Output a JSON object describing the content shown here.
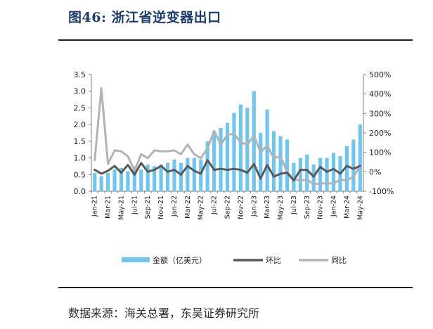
{
  "header": {
    "title": "图46:  浙江省逆变器出口"
  },
  "footer": {
    "source": "数据来源：海关总署，东吴证券研究所"
  },
  "colors": {
    "bar": "#6ec6f1",
    "mom": "#595959",
    "yoy": "#b3b3b3",
    "title": "#1b3c6e"
  },
  "chart_data": {
    "type": "bar",
    "categories": [
      "Jan-21",
      "Feb-21",
      "Mar-21",
      "Apr-21",
      "May-21",
      "Jun-21",
      "Jul-21",
      "Aug-21",
      "Sep-21",
      "Oct-21",
      "Nov-21",
      "Dec-21",
      "Jan-22",
      "Feb-22",
      "Mar-22",
      "Apr-22",
      "May-22",
      "Jun-22",
      "Jul-22",
      "Aug-22",
      "Sep-22",
      "Oct-22",
      "Nov-22",
      "Dec-22",
      "Jan-23",
      "Feb-23",
      "Mar-23",
      "Apr-23",
      "May-23",
      "Jun-23",
      "Jul-23",
      "Aug-23",
      "Sep-23",
      "Oct-23",
      "Nov-23",
      "Dec-23",
      "Jan-24",
      "Feb-24",
      "Mar-24",
      "Apr-24",
      "May-24"
    ],
    "x_tick_labels": [
      "Jan-21",
      "Mar-21",
      "May-21",
      "Jul-21",
      "Sep-21",
      "Nov-21",
      "Jan-22",
      "Mar-22",
      "May-22",
      "Jul-22",
      "Sep-22",
      "Nov-22",
      "Jan-23",
      "Mar-23",
      "May-23",
      "Jul-23",
      "Sep-23",
      "Nov-23",
      "Jan-24",
      "Mar-24",
      "May-24"
    ],
    "series": [
      {
        "name": "金额（亿美元）",
        "axis": "left",
        "type": "bar",
        "values": [
          0.55,
          0.45,
          0.55,
          0.65,
          0.7,
          0.6,
          0.75,
          0.65,
          0.8,
          0.75,
          0.8,
          0.85,
          0.95,
          0.85,
          1.0,
          1.0,
          0.95,
          1.5,
          1.8,
          1.9,
          2.05,
          2.35,
          2.6,
          2.5,
          3.0,
          1.75,
          2.45,
          1.8,
          1.65,
          1.55,
          0.85,
          1.0,
          1.1,
          0.8,
          1.0,
          1.0,
          1.15,
          1.05,
          1.35,
          1.55,
          2.0
        ]
      },
      {
        "name": "环比",
        "axis": "right",
        "type": "line",
        "values": [
          10,
          -10,
          5,
          30,
          -5,
          35,
          -15,
          45,
          0,
          10,
          30,
          0,
          10,
          -15,
          30,
          5,
          -10,
          60,
          10,
          15,
          10,
          15,
          10,
          -5,
          40,
          -35,
          35,
          -25,
          -10,
          -5,
          -45,
          10,
          10,
          -25,
          25,
          0,
          15,
          -10,
          30,
          15,
          30
        ]
      },
      {
        "name": "同比",
        "axis": "right",
        "type": "line",
        "values": [
          60,
          430,
          40,
          110,
          105,
          80,
          5,
          90,
          70,
          110,
          105,
          105,
          110,
          90,
          140,
          90,
          70,
          120,
          210,
          140,
          190,
          195,
          150,
          140,
          185,
          100,
          135,
          70,
          80,
          0,
          -40,
          -45,
          -40,
          -65,
          -60,
          -60,
          -60,
          -40,
          -45,
          -25,
          30
        ]
      }
    ],
    "left_axis": {
      "ylim": [
        0,
        3.5
      ],
      "ticks": [
        "0.0",
        "0.5",
        "1.0",
        "1.5",
        "2.0",
        "2.5",
        "3.0",
        "3.5"
      ]
    },
    "right_axis": {
      "ylim": [
        -100,
        500
      ],
      "ticks": [
        "-100%",
        "0%",
        "100%",
        "200%",
        "300%",
        "400%",
        "500%"
      ]
    },
    "legend_position": "bottom",
    "grid": false
  }
}
